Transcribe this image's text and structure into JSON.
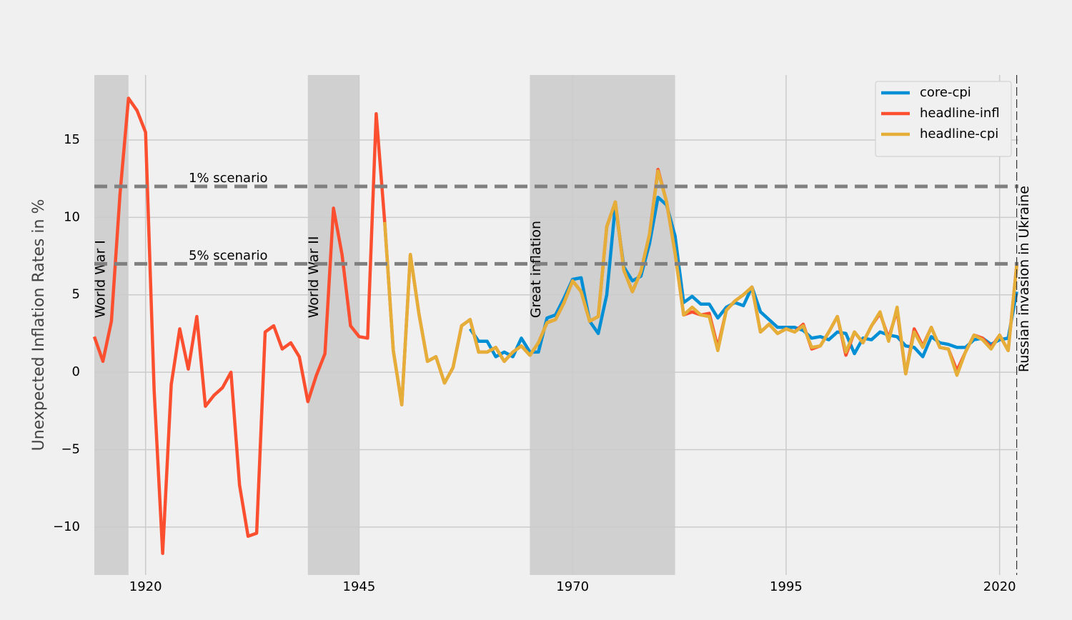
{
  "chart_data": {
    "type": "line",
    "y_label": "Unexpected Inflation Rates in %",
    "x": [
      1914,
      1915,
      1916,
      1917,
      1918,
      1919,
      1920,
      1921,
      1922,
      1923,
      1924,
      1925,
      1926,
      1927,
      1928,
      1929,
      1930,
      1931,
      1932,
      1933,
      1934,
      1935,
      1936,
      1937,
      1938,
      1939,
      1940,
      1941,
      1942,
      1943,
      1944,
      1945,
      1946,
      1947,
      1948,
      1949,
      1950,
      1951,
      1952,
      1953,
      1954,
      1955,
      1956,
      1957,
      1958,
      1959,
      1960,
      1961,
      1962,
      1963,
      1964,
      1965,
      1966,
      1967,
      1968,
      1969,
      1970,
      1971,
      1972,
      1973,
      1974,
      1975,
      1976,
      1977,
      1978,
      1979,
      1980,
      1981,
      1982,
      1983,
      1984,
      1985,
      1986,
      1987,
      1988,
      1989,
      1990,
      1991,
      1992,
      1993,
      1994,
      1995,
      1996,
      1997,
      1998,
      1999,
      2000,
      2001,
      2002,
      2003,
      2004,
      2005,
      2006,
      2007,
      2008,
      2009,
      2010,
      2011,
      2012,
      2013,
      2014,
      2015,
      2016,
      2017,
      2018,
      2019,
      2020,
      2021,
      2022
    ],
    "series": [
      {
        "name": "core-cpi",
        "color": "#008fd5",
        "values": [
          null,
          null,
          null,
          null,
          null,
          null,
          null,
          null,
          null,
          null,
          null,
          null,
          null,
          null,
          null,
          null,
          null,
          null,
          null,
          null,
          null,
          null,
          null,
          null,
          null,
          null,
          null,
          null,
          null,
          null,
          null,
          null,
          null,
          null,
          null,
          null,
          null,
          null,
          null,
          null,
          null,
          null,
          null,
          null,
          2.8,
          2.0,
          2.0,
          1.0,
          1.3,
          1.0,
          2.2,
          1.3,
          1.3,
          3.5,
          3.7,
          4.8,
          6.0,
          6.1,
          3.3,
          2.5,
          5.0,
          10.8,
          6.8,
          5.9,
          6.2,
          8.3,
          11.3,
          10.8,
          8.8,
          4.5,
          4.9,
          4.4,
          4.4,
          3.5,
          4.2,
          4.5,
          4.3,
          5.5,
          3.9,
          3.4,
          2.9,
          2.9,
          2.9,
          2.7,
          2.2,
          2.3,
          2.1,
          2.6,
          2.5,
          1.2,
          2.2,
          2.1,
          2.6,
          2.4,
          2.3,
          1.7,
          1.6,
          1.0,
          2.3,
          1.9,
          1.8,
          1.6,
          1.6,
          2.1,
          2.2,
          1.8,
          2.1,
          2.2,
          5.2
        ]
      },
      {
        "name": "headline-infl",
        "color": "#fc4f30",
        "values": [
          2.3,
          0.7,
          3.3,
          11.5,
          17.7,
          16.9,
          15.5,
          -1.2,
          -11.7,
          -0.8,
          2.8,
          0.2,
          3.6,
          -2.2,
          -1.5,
          -1.0,
          0.0,
          -7.3,
          -10.6,
          -10.4,
          2.6,
          3.0,
          1.5,
          1.9,
          1.0,
          -1.9,
          -0.2,
          1.2,
          10.6,
          7.6,
          3.0,
          2.3,
          2.2,
          16.7,
          9.7,
          1.4,
          -2.1,
          7.6,
          3.8,
          0.7,
          1.0,
          -0.7,
          0.3,
          3.0,
          3.4,
          1.3,
          1.3,
          1.6,
          0.7,
          1.3,
          1.7,
          1.1,
          1.9,
          3.2,
          3.4,
          4.5,
          5.9,
          5.2,
          3.3,
          3.6,
          9.4,
          11.0,
          6.6,
          5.2,
          6.5,
          8.9,
          13.1,
          11.0,
          7.7,
          3.7,
          3.9,
          3.7,
          3.8,
          1.6,
          4.0,
          4.6,
          5.0,
          5.5,
          2.6,
          3.1,
          2.5,
          2.8,
          2.6,
          3.1,
          1.5,
          1.7,
          2.6,
          3.6,
          1.1,
          2.6,
          1.9,
          3.0,
          3.8,
          2.2,
          4.0,
          -0.1,
          2.8,
          1.7,
          2.9,
          1.6,
          1.5,
          0.1,
          1.3,
          2.4,
          2.2,
          1.6,
          2.4,
          1.4,
          6.9
        ]
      },
      {
        "name": "headline-cpi",
        "color": "#e5ae38",
        "values": [
          null,
          null,
          null,
          null,
          null,
          null,
          null,
          null,
          null,
          null,
          null,
          null,
          null,
          null,
          null,
          null,
          null,
          null,
          null,
          null,
          null,
          null,
          null,
          null,
          null,
          null,
          null,
          null,
          null,
          null,
          null,
          null,
          null,
          null,
          9.7,
          1.4,
          -2.1,
          7.6,
          3.8,
          0.7,
          1.0,
          -0.7,
          0.3,
          3.0,
          3.4,
          1.3,
          1.3,
          1.6,
          0.7,
          1.3,
          1.7,
          1.1,
          1.9,
          3.2,
          3.4,
          4.5,
          5.9,
          5.2,
          3.3,
          3.6,
          9.4,
          11.0,
          6.6,
          5.2,
          6.5,
          8.9,
          13.0,
          11.0,
          7.7,
          3.7,
          4.2,
          3.7,
          3.6,
          1.4,
          4.0,
          4.6,
          5.0,
          5.5,
          2.6,
          3.1,
          2.5,
          2.8,
          2.6,
          3.0,
          1.6,
          1.7,
          2.6,
          3.6,
          1.3,
          2.6,
          1.9,
          3.0,
          3.9,
          2.0,
          4.2,
          -0.1,
          2.6,
          1.6,
          2.9,
          1.6,
          1.5,
          -0.2,
          1.3,
          2.4,
          2.1,
          1.5,
          2.4,
          1.4,
          6.9
        ]
      }
    ],
    "xlim": [
      1914,
      2022.2
    ],
    "ylim": [
      -13.1,
      19.2
    ],
    "xticks": [
      1920,
      1945,
      1970,
      1995,
      2020
    ],
    "yticks": [
      {
        "value": -10,
        "label": "−10"
      },
      {
        "value": -5,
        "label": "−5"
      },
      0,
      5,
      10,
      15
    ],
    "grid": true,
    "legend": "upper right",
    "shaded_regions": [
      {
        "start": 1914,
        "end": 1918,
        "label": "World War I"
      },
      {
        "start": 1939,
        "end": 1945,
        "label": "World War II"
      },
      {
        "start": 1965,
        "end": 1982,
        "label": "Great inflation"
      }
    ],
    "hlines": [
      {
        "y": 12,
        "label": "1% scenario"
      },
      {
        "y": 7,
        "label": "5% scenario"
      }
    ],
    "vlines": [
      {
        "x": 2022,
        "label": "Russian invasion in Ukraine"
      }
    ]
  }
}
